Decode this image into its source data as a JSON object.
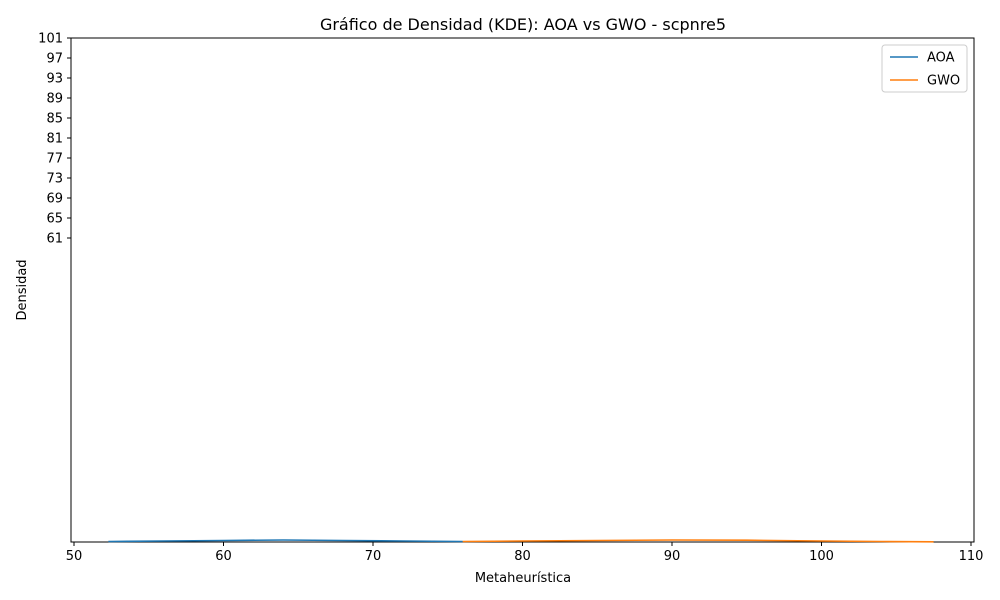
{
  "chart_data": {
    "type": "line",
    "title": "Gráfico de Densidad (KDE): AOA vs GWO - scpnre5",
    "xlabel": "Metaheurística",
    "ylabel": "Densidad",
    "xlim": [
      49.8,
      110.2
    ],
    "x_ticks": [
      50,
      60,
      70,
      80,
      90,
      100,
      110
    ],
    "y_ticks": [
      61,
      65,
      69,
      73,
      77,
      81,
      85,
      89,
      93,
      97,
      101
    ],
    "legend_position": "top-right",
    "series": [
      {
        "name": "AOA",
        "color": "#1f77b4",
        "x": [
          52.3,
          56,
          60,
          64,
          68,
          72,
          76
        ],
        "y": [
          0.05,
          0.1,
          0.15,
          0.2,
          0.15,
          0.1,
          0.05
        ]
      },
      {
        "name": "GWO",
        "color": "#ff7f0e",
        "x": [
          76,
          80,
          85,
          90,
          95,
          100,
          104,
          107.5
        ],
        "y": [
          0.05,
          0.1,
          0.15,
          0.2,
          0.18,
          0.1,
          0.05,
          0.02
        ]
      }
    ]
  }
}
